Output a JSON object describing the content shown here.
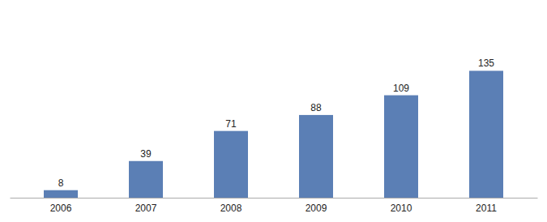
{
  "chart_data": {
    "type": "bar",
    "categories": [
      "2006",
      "2007",
      "2008",
      "2009",
      "2010",
      "2011"
    ],
    "values": [
      8,
      39,
      71,
      88,
      109,
      135
    ],
    "color": "#5b7fb5",
    "ylim": [
      0,
      200
    ],
    "data_labels": true,
    "tick_labels": "x"
  }
}
